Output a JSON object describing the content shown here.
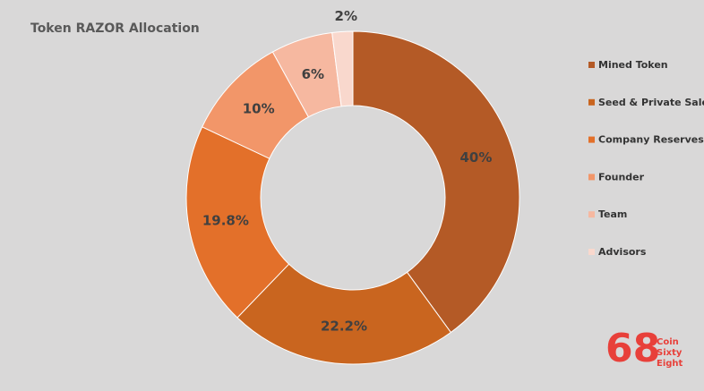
{
  "chart_data": {
    "type": "donut",
    "title": "Token RAZOR Allocation",
    "categories": [
      "Mined Token",
      "Seed & Private Sale",
      "Company Reserves",
      "Founder",
      "Team",
      "Advisors"
    ],
    "values": [
      40,
      22.2,
      19.8,
      10,
      6,
      2
    ],
    "value_labels": [
      "40%",
      "22.2%",
      "19.8%",
      "10%",
      "6%",
      "2%"
    ],
    "colors": [
      "#b45a26",
      "#c9651f",
      "#e3702a",
      "#f29669",
      "#f6b8a0",
      "#f9d8cd"
    ],
    "legend": "right"
  },
  "logo": {
    "mark": "68",
    "lines": [
      "Coin",
      "Sixty",
      "Eight"
    ]
  }
}
